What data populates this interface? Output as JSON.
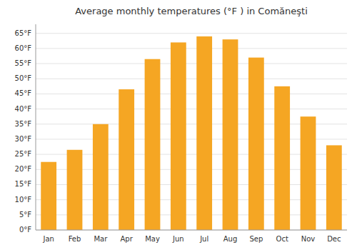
{
  "chart_data": {
    "type": "bar",
    "title": "Average monthly temperatures (°F ) in Comăneşti",
    "categories": [
      "Jan",
      "Feb",
      "Mar",
      "Apr",
      "May",
      "Jun",
      "Jul",
      "Aug",
      "Sep",
      "Oct",
      "Nov",
      "Dec"
    ],
    "values": [
      22.5,
      26.5,
      35,
      46.5,
      56.5,
      62,
      64,
      63,
      57,
      47.5,
      37.5,
      28
    ],
    "color": "#F5A623",
    "ylim": [
      0,
      68
    ],
    "yticks": [
      {
        "value": 0,
        "label": "0°F"
      },
      {
        "value": 5,
        "label": "5°F"
      },
      {
        "value": 10,
        "label": "10°F"
      },
      {
        "value": 15,
        "label": "15°F"
      },
      {
        "value": 20,
        "label": "20°F"
      },
      {
        "value": 25,
        "label": "25°F"
      },
      {
        "value": 30,
        "label": "30°F"
      },
      {
        "value": 35,
        "label": "35°F"
      },
      {
        "value": 40,
        "label": "40°F"
      },
      {
        "value": 45,
        "label": "45°F"
      },
      {
        "value": 50,
        "label": "50°F"
      },
      {
        "value": 55,
        "label": "55°F"
      },
      {
        "value": 60,
        "label": "60°F"
      },
      {
        "value": 65,
        "label": "65°F"
      }
    ],
    "grid": true
  }
}
